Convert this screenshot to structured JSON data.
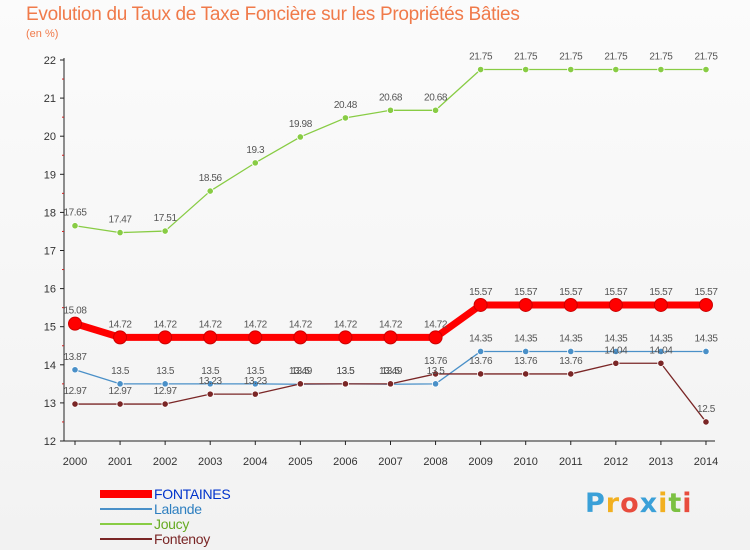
{
  "title": "Evolution du Taux de Taxe Foncière sur les Propriétés Bâties",
  "subtitle": "(en %)",
  "logo": {
    "text": "Proxiti",
    "letters": [
      "P",
      "r",
      "o",
      "x",
      "i",
      "t",
      "i"
    ],
    "colors": [
      "#3aa0d8",
      "#f2b020",
      "#e84c3d",
      "#3aa0d8",
      "#f2b020",
      "#7cc142",
      "#e84c3d"
    ]
  },
  "chart_data": {
    "type": "line",
    "title": "Evolution du Taux de Taxe Foncière sur les Propriétés Bâties",
    "ylabel": "(en %)",
    "xlabel": "",
    "x": [
      "2000",
      "2001",
      "2002",
      "2003",
      "2004",
      "2005",
      "2006",
      "2007",
      "2008",
      "2009",
      "2010",
      "2011",
      "2012",
      "2013",
      "2014"
    ],
    "yticks": [
      12,
      13,
      14,
      15,
      16,
      17,
      18,
      19,
      20,
      21,
      22
    ],
    "ylim": [
      12,
      22
    ],
    "series": [
      {
        "name": "FONTAINES",
        "color": "#ff0000",
        "labelColor": "#0033cc",
        "emphasis": true,
        "values": [
          15.08,
          14.72,
          14.72,
          14.72,
          14.72,
          14.72,
          14.72,
          14.72,
          14.72,
          15.57,
          15.57,
          15.57,
          15.57,
          15.57,
          15.57
        ],
        "labels": [
          "15.08",
          "14.72",
          "14.72",
          "14.72",
          "14.72",
          "14.72",
          "14.72",
          "14.72",
          "14.72",
          "15.57",
          "15.57",
          "15.57",
          "15.57",
          "15.57",
          "15.57"
        ]
      },
      {
        "name": "Lalande",
        "color": "#4a90c8",
        "labelColor": "#2e7fc0",
        "values": [
          13.87,
          13.5,
          13.5,
          13.5,
          13.5,
          13.49,
          13.5,
          13.49,
          13.5,
          14.35,
          14.35,
          14.35,
          14.35,
          14.35,
          14.35
        ],
        "labels": [
          "13.87",
          "13.5",
          "13.5",
          "13.5",
          "13.5",
          "13.49",
          "13.5",
          "13.49",
          "13.5",
          "14.35",
          "14.35",
          "14.35",
          "14.35",
          "14.35",
          "14.35"
        ]
      },
      {
        "name": "Joucy",
        "color": "#88cc44",
        "labelColor": "#66aa22",
        "values": [
          17.65,
          17.47,
          17.51,
          18.56,
          19.3,
          19.98,
          20.48,
          20.68,
          20.68,
          21.75,
          21.75,
          21.75,
          21.75,
          21.75,
          21.75
        ],
        "labels": [
          "17.65",
          "17.47",
          "17.51",
          "18.56",
          "19.3",
          "19.98",
          "20.48",
          "20.68",
          "20.68",
          "21.75",
          "21.75",
          "21.75",
          "21.75",
          "21.75",
          "21.75"
        ]
      },
      {
        "name": "Fontenoy",
        "color": "#7a2626",
        "labelColor": "#7a2626",
        "values": [
          12.97,
          12.97,
          12.97,
          13.23,
          13.23,
          13.5,
          13.5,
          13.5,
          13.76,
          13.76,
          13.76,
          13.76,
          14.04,
          14.04,
          12.5
        ],
        "labels": [
          "12.97",
          "12.97",
          "12.97",
          "13.23",
          "13.23",
          "13.5",
          "13.5",
          "13.5",
          "13.76",
          "13.76",
          "13.76",
          "13.76",
          "14.04",
          "14.04",
          "12.5"
        ]
      }
    ],
    "legend": "bottom-left",
    "grid": false
  }
}
